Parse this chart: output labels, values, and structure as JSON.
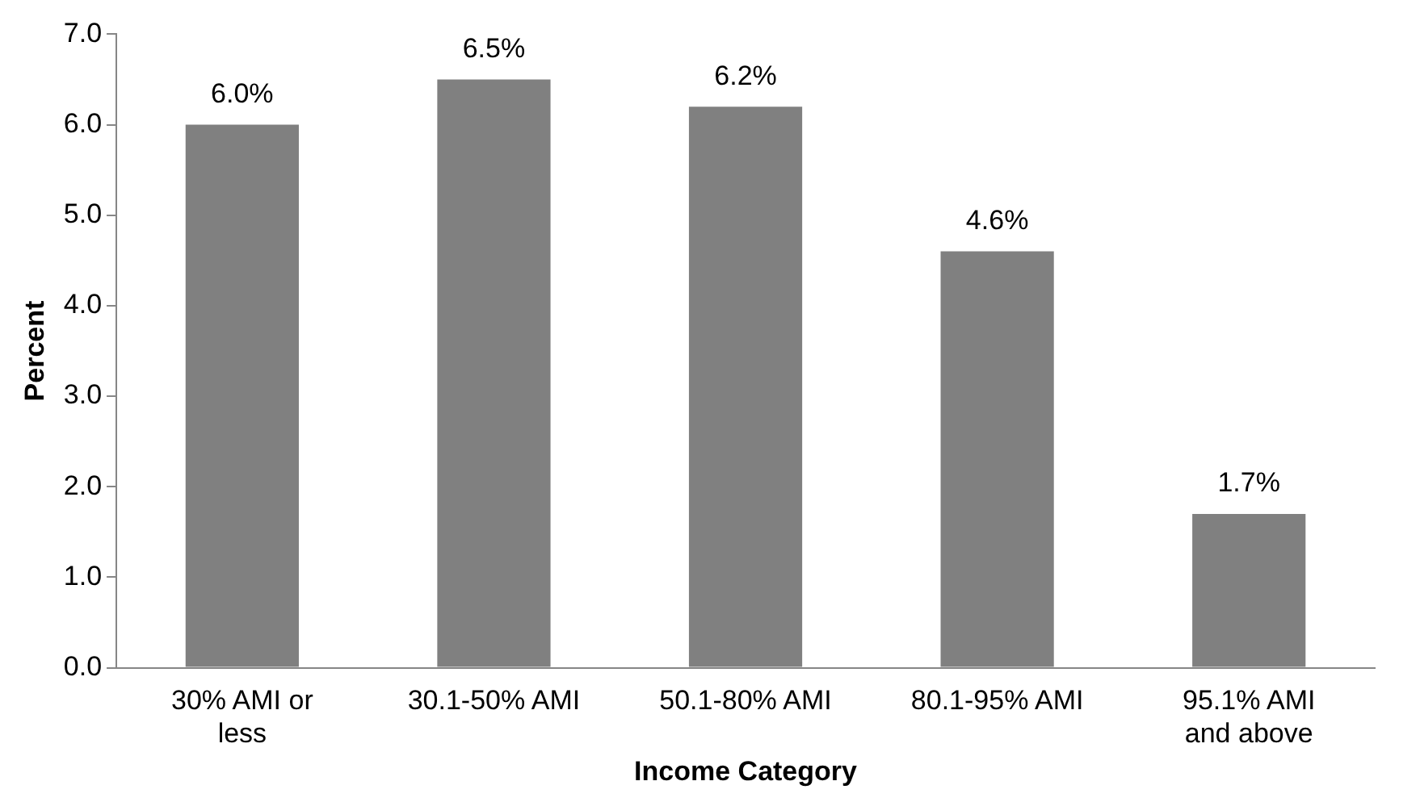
{
  "chart_data": {
    "type": "bar",
    "xlabel": "Income Category",
    "ylabel": "Percent",
    "categories": [
      "30% AMI or less",
      "30.1-50% AMI",
      "50.1-80% AMI",
      "80.1-95% AMI",
      "95.1% AMI and above"
    ],
    "values": [
      6.0,
      6.5,
      6.2,
      4.6,
      1.7
    ],
    "color": "#808080",
    "value_labels": [
      "6.0%",
      "6.5%",
      "6.2%",
      "4.6%",
      "1.7%"
    ],
    "ylim": [
      0,
      7
    ],
    "yticks": [
      {
        "value": 0,
        "label": "0.0"
      },
      {
        "value": 1,
        "label": "1.0"
      },
      {
        "value": 2,
        "label": "2.0"
      },
      {
        "value": 3,
        "label": "3.0"
      },
      {
        "value": 4,
        "label": "4.0"
      },
      {
        "value": 5,
        "label": "5.0"
      },
      {
        "value": 6,
        "label": "6.0"
      },
      {
        "value": 7,
        "label": "7.0"
      }
    ],
    "grid": false,
    "legend": false
  }
}
